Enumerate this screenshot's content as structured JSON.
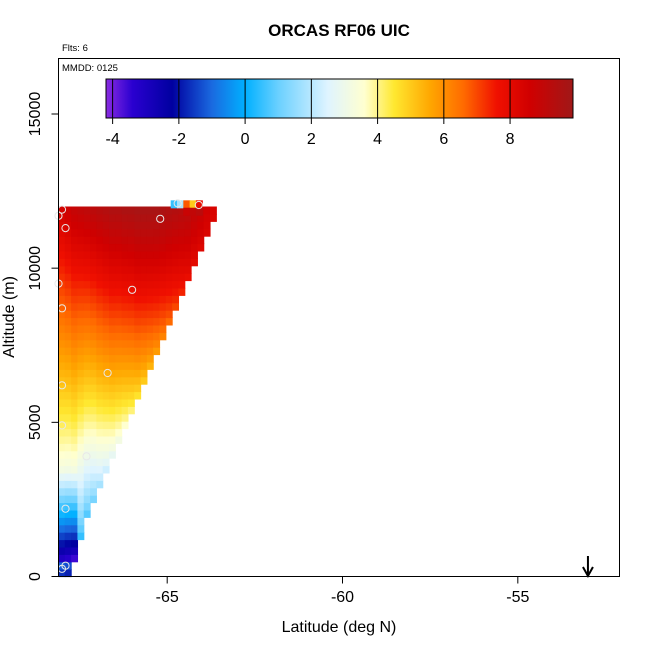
{
  "chart_data": {
    "type": "heatmap",
    "title": "ORCAS RF06 UIC",
    "annotations": {
      "flights": "Flts: 6",
      "mmdd": "MMDD: 0125"
    },
    "xlabel": "Latitude (deg N)",
    "ylabel": "Altitude (m)",
    "xlim": [
      -68.1,
      -52.1
    ],
    "ylim": [
      0,
      16800
    ],
    "x_ticks": [
      -65,
      -60,
      -55
    ],
    "x_tick_labels": [
      "-65",
      "-60",
      "-55"
    ],
    "y_ticks": [
      0,
      5000,
      10000,
      15000
    ],
    "y_tick_labels": [
      "0",
      "5000",
      "10000",
      "15000"
    ],
    "colorbar": {
      "min": -4.2,
      "max": 9.9,
      "ticks": [
        -4,
        -2,
        0,
        2,
        4,
        6,
        8
      ],
      "tick_labels": [
        "-4",
        "-2",
        "0",
        "2",
        "4",
        "6",
        "8"
      ],
      "stops": [
        {
          "v": -4.2,
          "c": "#8a2be2"
        },
        {
          "v": -3.4,
          "c": "#2a00d0"
        },
        {
          "v": -2.2,
          "c": "#0000a0"
        },
        {
          "v": -1.0,
          "c": "#1a6ae0"
        },
        {
          "v": 0.0,
          "c": "#00b0ff"
        },
        {
          "v": 1.0,
          "c": "#6ad0ff"
        },
        {
          "v": 2.5,
          "c": "#dff4ff"
        },
        {
          "v": 3.6,
          "c": "#ffffd0"
        },
        {
          "v": 4.5,
          "c": "#ffe830"
        },
        {
          "v": 5.6,
          "c": "#ffa600"
        },
        {
          "v": 6.6,
          "c": "#ff6a00"
        },
        {
          "v": 7.6,
          "c": "#f01000"
        },
        {
          "v": 8.6,
          "c": "#d00000"
        },
        {
          "v": 9.9,
          "c": "#a01818"
        }
      ]
    },
    "grid": {
      "lat_start": -68.1,
      "lat_step": 0.18,
      "alt_start": 0,
      "alt_step": 240,
      "columns": [
        {
          "top": 11960,
          "bottom": 0,
          "v_top": 8.6,
          "v_bottom": 0.2,
          "low_neg": true
        },
        {
          "top": 11960,
          "bottom": 0,
          "v_top": 8.8,
          "v_bottom": 0.0,
          "low_neg": true
        },
        {
          "top": 11960,
          "bottom": 480,
          "v_top": 9.0,
          "v_bottom": 0.4,
          "low_neg": true
        },
        {
          "top": 11960,
          "bottom": 1200,
          "v_top": 9.1,
          "v_bottom": 0.5,
          "low_neg": false
        },
        {
          "top": 11960,
          "bottom": 1920,
          "v_top": 9.2,
          "v_bottom": 0.8,
          "low_neg": false
        },
        {
          "top": 11960,
          "bottom": 2400,
          "v_top": 9.3,
          "v_bottom": 1.2,
          "low_neg": false
        },
        {
          "top": 11960,
          "bottom": 2880,
          "v_top": 9.4,
          "v_bottom": 1.8,
          "low_neg": false
        },
        {
          "top": 11960,
          "bottom": 3360,
          "v_top": 9.5,
          "v_bottom": 2.3,
          "low_neg": false
        },
        {
          "top": 11960,
          "bottom": 3840,
          "v_top": 9.6,
          "v_bottom": 2.8,
          "low_neg": false
        },
        {
          "top": 11960,
          "bottom": 4320,
          "v_top": 9.6,
          "v_bottom": 3.2,
          "low_neg": false
        },
        {
          "top": 11960,
          "bottom": 4800,
          "v_top": 9.7,
          "v_bottom": 3.6,
          "low_neg": false
        },
        {
          "top": 11960,
          "bottom": 5280,
          "v_top": 9.7,
          "v_bottom": 4.1,
          "low_neg": false
        },
        {
          "top": 11960,
          "bottom": 5760,
          "v_top": 9.8,
          "v_bottom": 4.6,
          "low_neg": false
        },
        {
          "top": 11960,
          "bottom": 6240,
          "v_top": 9.8,
          "v_bottom": 5.0,
          "low_neg": false
        },
        {
          "top": 11960,
          "bottom": 6720,
          "v_top": 9.8,
          "v_bottom": 5.4,
          "low_neg": false
        },
        {
          "top": 11960,
          "bottom": 7200,
          "v_top": 9.8,
          "v_bottom": 5.8,
          "low_neg": false
        },
        {
          "top": 11960,
          "bottom": 7680,
          "v_top": 9.7,
          "v_bottom": 6.2,
          "low_neg": false
        },
        {
          "top": 11960,
          "bottom": 8160,
          "v_top": 9.6,
          "v_bottom": 6.6,
          "low_neg": false
        },
        {
          "top": 11960,
          "bottom": 8640,
          "v_top": 9.5,
          "v_bottom": 7.0,
          "low_neg": false
        },
        {
          "top": 11960,
          "bottom": 9120,
          "v_top": 9.4,
          "v_bottom": 7.4,
          "low_neg": false
        },
        {
          "top": 11960,
          "bottom": 9600,
          "v_top": 9.3,
          "v_bottom": 7.8,
          "low_neg": false
        },
        {
          "top": 11960,
          "bottom": 10080,
          "v_top": 9.1,
          "v_bottom": 8.0,
          "low_neg": false
        },
        {
          "top": 11960,
          "bottom": 10560,
          "v_top": 8.9,
          "v_bottom": 8.2,
          "low_neg": false
        },
        {
          "top": 11960,
          "bottom": 11040,
          "v_top": 8.6,
          "v_bottom": 8.3,
          "low_neg": false
        },
        {
          "top": 11960,
          "bottom": 11520,
          "v_top": 8.4,
          "v_bottom": 8.3,
          "low_neg": false
        }
      ]
    },
    "extra_cells": [
      {
        "lat": -64.9,
        "alt": 11960,
        "v": 0.5
      },
      {
        "lat": -64.72,
        "alt": 11960,
        "v": 1.8
      },
      {
        "lat": -64.54,
        "alt": 11960,
        "v": 6.8
      },
      {
        "lat": -64.36,
        "alt": 11960,
        "v": 5.0
      },
      {
        "lat": -64.18,
        "alt": 11960,
        "v": 7.8
      },
      {
        "lat": -64.54,
        "alt": 11720,
        "v": 8.8
      },
      {
        "lat": -64.36,
        "alt": 11720,
        "v": 9.0
      },
      {
        "lat": -64.18,
        "alt": 11720,
        "v": 9.2
      }
    ],
    "observations": [
      {
        "lat": -68.0,
        "alt": 11900
      },
      {
        "lat": -68.1,
        "alt": 11700
      },
      {
        "lat": -67.9,
        "alt": 11300
      },
      {
        "lat": -64.7,
        "alt": 12100
      },
      {
        "lat": -65.2,
        "alt": 11600
      },
      {
        "lat": -64.1,
        "alt": 12050
      },
      {
        "lat": -66.0,
        "alt": 9300
      },
      {
        "lat": -68.0,
        "alt": 8700
      },
      {
        "lat": -66.7,
        "alt": 6600
      },
      {
        "lat": -68.0,
        "alt": 6200
      },
      {
        "lat": -68.0,
        "alt": 4900
      },
      {
        "lat": -67.3,
        "alt": 3900
      },
      {
        "lat": -67.9,
        "alt": 2200
      },
      {
        "lat": -67.9,
        "alt": 350
      },
      {
        "lat": -68.0,
        "alt": 250
      },
      {
        "lat": -68.1,
        "alt": 9500
      }
    ],
    "arrow_lat": -53.0
  }
}
